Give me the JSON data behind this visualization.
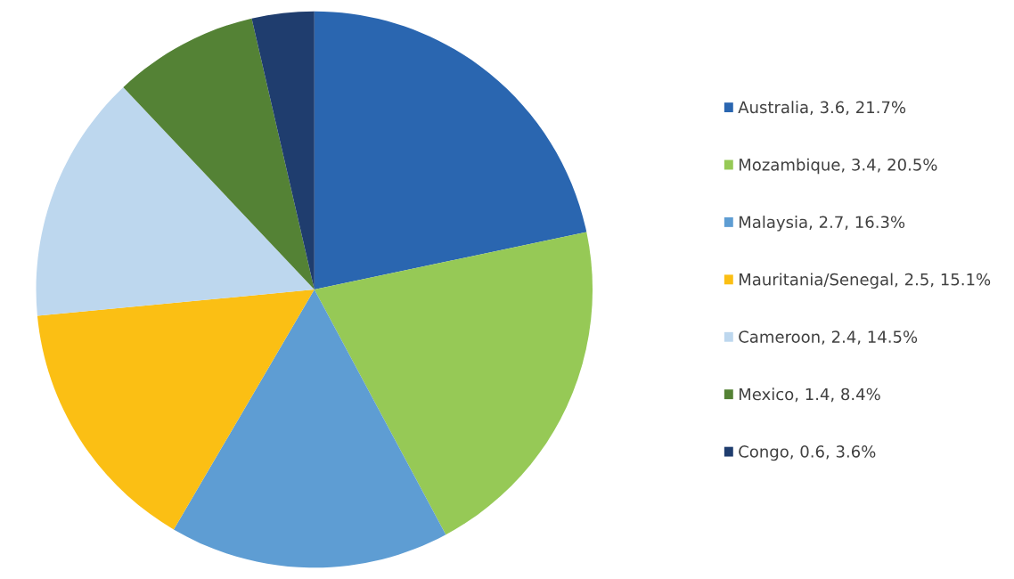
{
  "chart_data": {
    "type": "pie",
    "categories": [
      "Australia, 3.6, 21.7%",
      "Mozambique, 3.4, 20.5%",
      "Malaysia, 2.7, 16.3%",
      "Mauritania/Senegal, 2.5, 15.1%",
      "Cameroon, 2.4, 14.5%",
      "Mexico, 1.4, 8.4%",
      "Congo, 0.6, 3.6%"
    ],
    "values": [
      3.6,
      3.4,
      2.7,
      2.5,
      2.4,
      1.4,
      0.6
    ],
    "colors": [
      "#2a66b0",
      "#96c956",
      "#5e9dd3",
      "#fbbf14",
      "#bdd7ee",
      "#548235",
      "#1f3d6e"
    ],
    "legend": "right"
  }
}
